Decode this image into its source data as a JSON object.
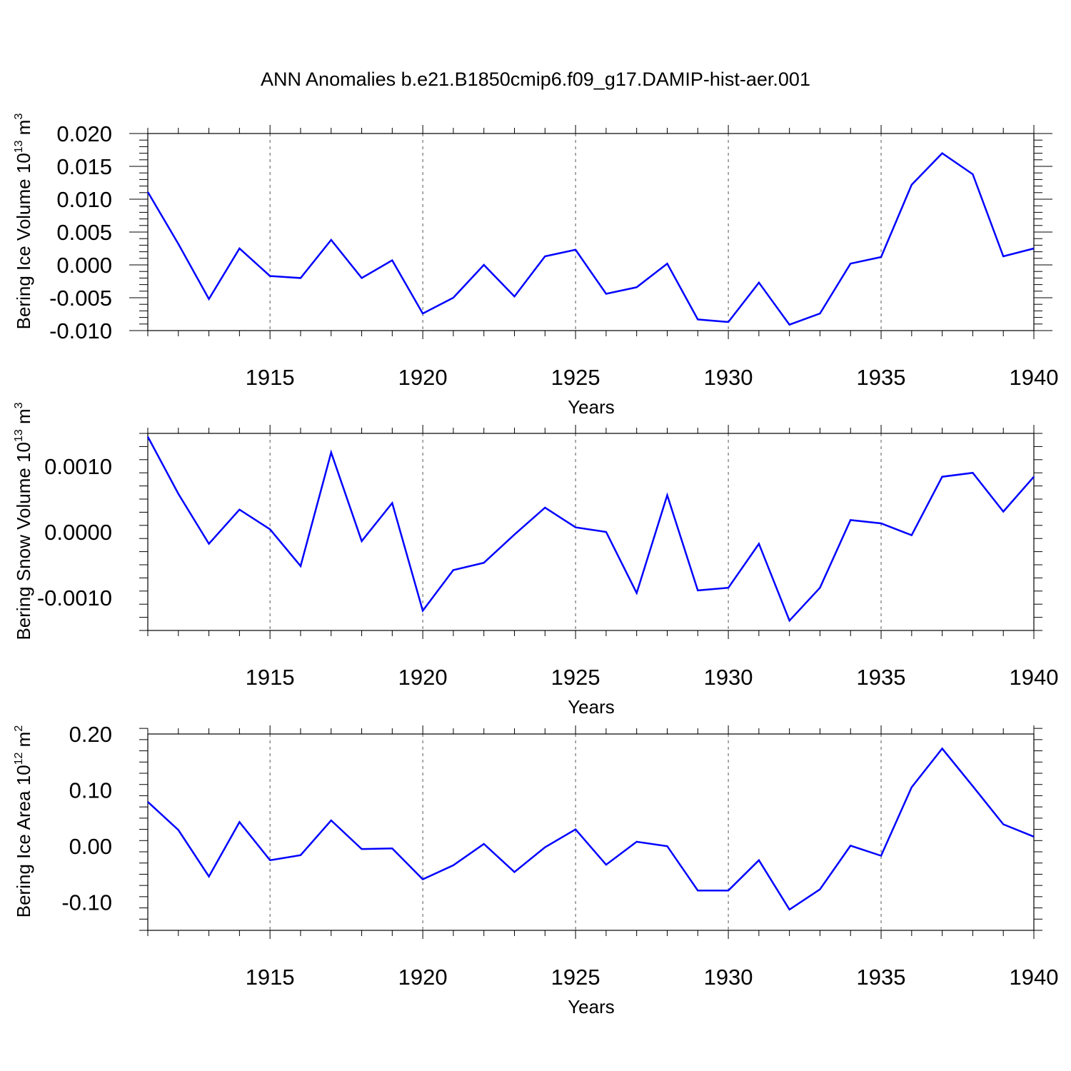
{
  "title": "ANN Anomalies b.e21.B1850cmip6.f09_g17.DAMIP-hist-aer.001",
  "colors": {
    "line": "#0000ff",
    "axis": "#000000",
    "grid": "#555555"
  },
  "chart_data": [
    {
      "type": "line",
      "ylabel": {
        "prefix": "Bering Ice Volume 10",
        "exp": "13",
        "unit": " m",
        "unit_exp": "3"
      },
      "xlabel": "Years",
      "xlim": [
        1911,
        1940
      ],
      "ylim": [
        -0.01,
        0.02
      ],
      "yticks": [
        -0.01,
        -0.005,
        0.0,
        0.005,
        0.01,
        0.015,
        0.02
      ],
      "ytick_labels": [
        "-0.010",
        "-0.005",
        "0.000",
        "0.005",
        "0.010",
        "0.015",
        "0.020"
      ],
      "xticks": [
        1915,
        1920,
        1925,
        1930,
        1935,
        1940
      ],
      "xtick_labels": [
        "1915",
        "1920",
        "1925",
        "1930",
        "1935",
        "1940"
      ],
      "grid": "vertical dashed at major x ticks",
      "x": [
        1911,
        1912,
        1913,
        1914,
        1915,
        1916,
        1917,
        1918,
        1919,
        1920,
        1921,
        1922,
        1923,
        1924,
        1925,
        1926,
        1927,
        1928,
        1929,
        1930,
        1931,
        1932,
        1933,
        1934,
        1935,
        1936,
        1937,
        1938,
        1939,
        1940
      ],
      "values": [
        0.0111,
        0.0032,
        -0.0052,
        0.0025,
        -0.0017,
        -0.002,
        0.0038,
        -0.002,
        0.0007,
        -0.0074,
        -0.005,
        0.0,
        -0.0048,
        0.0013,
        0.0023,
        -0.0044,
        -0.0034,
        0.0002,
        -0.0083,
        -0.0087,
        -0.0027,
        -0.0091,
        -0.0074,
        0.0002,
        0.0012,
        0.0122,
        0.017,
        0.0138,
        0.0013,
        0.0025
      ]
    },
    {
      "type": "line",
      "ylabel": {
        "prefix": "Bering Snow Volume 10",
        "exp": "13",
        "unit": " m",
        "unit_exp": "3"
      },
      "xlabel": "Years",
      "xlim": [
        1911,
        1940
      ],
      "ylim": [
        -0.0015,
        0.0015
      ],
      "yticks": [
        -0.001,
        0.0,
        0.001
      ],
      "ytick_labels": [
        "-0.0010",
        "0.0000",
        "0.0010"
      ],
      "xticks": [
        1915,
        1920,
        1925,
        1930,
        1935,
        1940
      ],
      "xtick_labels": [
        "1915",
        "1920",
        "1925",
        "1930",
        "1935",
        "1940"
      ],
      "grid": "vertical dashed at major x ticks",
      "x": [
        1911,
        1912,
        1913,
        1914,
        1915,
        1916,
        1917,
        1918,
        1919,
        1920,
        1921,
        1922,
        1923,
        1924,
        1925,
        1926,
        1927,
        1928,
        1929,
        1930,
        1931,
        1932,
        1933,
        1934,
        1935,
        1936,
        1937,
        1938,
        1939,
        1940
      ],
      "values": [
        0.00145,
        0.00058,
        -0.00018,
        0.00034,
        4e-05,
        -0.00052,
        0.00121,
        -0.00014,
        0.00044,
        -0.0012,
        -0.00058,
        -0.00047,
        -4e-05,
        0.00037,
        7e-05,
        0.0,
        -0.00093,
        0.00056,
        -0.00089,
        -0.00085,
        -0.00018,
        -0.00135,
        -0.00085,
        0.00018,
        0.00013,
        -5e-05,
        0.00084,
        0.0009,
        0.00031,
        0.00084
      ]
    },
    {
      "type": "line",
      "ylabel": {
        "prefix": "Bering Ice Area 10",
        "exp": "12",
        "unit": " m",
        "unit_exp": "2"
      },
      "xlabel": "Years",
      "xlim": [
        1911,
        1940
      ],
      "ylim": [
        -0.15,
        0.2
      ],
      "yticks": [
        -0.1,
        0.0,
        0.1,
        0.2
      ],
      "ytick_labels": [
        "-0.10",
        "0.00",
        "0.10",
        "0.20"
      ],
      "xticks": [
        1915,
        1920,
        1925,
        1930,
        1935,
        1940
      ],
      "xtick_labels": [
        "1915",
        "1920",
        "1925",
        "1930",
        "1935",
        "1940"
      ],
      "grid": "vertical dashed at major x ticks",
      "x": [
        1911,
        1912,
        1913,
        1914,
        1915,
        1916,
        1917,
        1918,
        1919,
        1920,
        1921,
        1922,
        1923,
        1924,
        1925,
        1926,
        1927,
        1928,
        1929,
        1930,
        1931,
        1932,
        1933,
        1934,
        1935,
        1936,
        1937,
        1938,
        1939,
        1940
      ],
      "values": [
        0.079,
        0.029,
        -0.054,
        0.043,
        -0.025,
        -0.016,
        0.046,
        -0.005,
        -0.004,
        -0.059,
        -0.034,
        0.004,
        -0.046,
        -0.002,
        0.03,
        -0.033,
        0.008,
        0.0,
        -0.079,
        -0.079,
        -0.025,
        -0.113,
        -0.077,
        0.001,
        -0.017,
        0.105,
        0.174,
        0.107,
        0.039,
        0.017
      ]
    }
  ]
}
